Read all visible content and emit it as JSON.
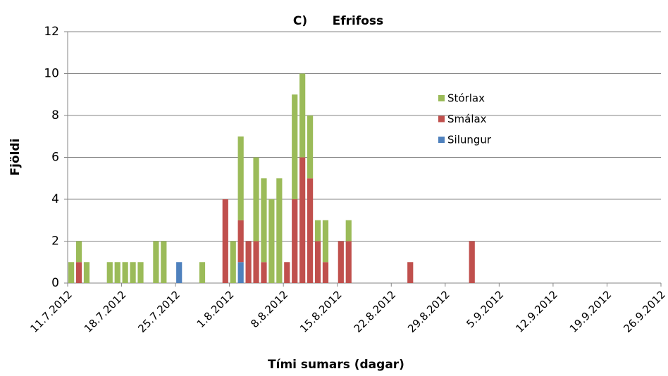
{
  "chart_data": {
    "type": "stacked_bar",
    "title": "C)      Efrifoss",
    "xlabel": "Tími sumars (dagar)",
    "ylabel": "Fjöldi",
    "categories": [
      "11.7.2012",
      null,
      null,
      null,
      null,
      null,
      null,
      "18.7.2012",
      null,
      null,
      null,
      null,
      null,
      null,
      "25.7.2012",
      null,
      null,
      null,
      null,
      null,
      null,
      "1.8.2012",
      null,
      null,
      null,
      null,
      null,
      null,
      "8.8.2012",
      null,
      null,
      null,
      null,
      null,
      null,
      "15.8.2012",
      null,
      null,
      null,
      null,
      null,
      null,
      "22.8.2012",
      null,
      null,
      null,
      null,
      null,
      null,
      "29.8.2012",
      null,
      null,
      null,
      null,
      null,
      null,
      "5.9.2012",
      null,
      null,
      null,
      null,
      null,
      null,
      "12.9.2012",
      null,
      null,
      null,
      null,
      null,
      null,
      "19.9.2012",
      null,
      null,
      null,
      null,
      null,
      null,
      "26.9.2012"
    ],
    "series": [
      {
        "name": "Stórlax",
        "color": "#9bbb59",
        "values": [
          1,
          1,
          1,
          0,
          0,
          1,
          1,
          1,
          1,
          1,
          0,
          2,
          2,
          0,
          0,
          0,
          0,
          1,
          0,
          0,
          0,
          2,
          4,
          0,
          4,
          4,
          4,
          5,
          0,
          5,
          4,
          3,
          1,
          2,
          0,
          0,
          1,
          0,
          0,
          0,
          0,
          0,
          0,
          0,
          0,
          0,
          0,
          0,
          0,
          0,
          0,
          0,
          0,
          0,
          0,
          0,
          0,
          0,
          0,
          0,
          0,
          0,
          0,
          0,
          0,
          0,
          0,
          0,
          0,
          0,
          0,
          0,
          0,
          0,
          0,
          0,
          0,
          0
        ]
      },
      {
        "name": "Smálax",
        "color": "#c0504d",
        "values": [
          0,
          1,
          0,
          0,
          0,
          0,
          0,
          0,
          0,
          0,
          0,
          0,
          0,
          0,
          0,
          0,
          0,
          0,
          0,
          0,
          4,
          0,
          2,
          2,
          2,
          1,
          0,
          0,
          1,
          4,
          6,
          5,
          2,
          1,
          0,
          2,
          2,
          0,
          0,
          0,
          0,
          0,
          0,
          0,
          1,
          0,
          0,
          0,
          0,
          0,
          0,
          0,
          2,
          0,
          0,
          0,
          0,
          0,
          0,
          0,
          0,
          0,
          0,
          0,
          0,
          0,
          0,
          0,
          0,
          0,
          0,
          0,
          0,
          0,
          0,
          0,
          0,
          0
        ]
      },
      {
        "name": "Silungur",
        "color": "#4f81bd",
        "values": [
          0,
          0,
          0,
          0,
          0,
          0,
          0,
          0,
          0,
          0,
          0,
          0,
          0,
          0,
          1,
          0,
          0,
          0,
          0,
          0,
          0,
          0,
          1,
          0,
          0,
          0,
          0,
          0,
          0,
          0,
          0,
          0,
          0,
          0,
          0,
          0,
          0,
          0,
          0,
          0,
          0,
          0,
          0,
          0,
          0,
          0,
          0,
          0,
          0,
          0,
          0,
          0,
          0,
          0,
          0,
          0,
          0,
          0,
          0,
          0,
          0,
          0,
          0,
          0,
          0,
          0,
          0,
          0,
          0,
          0,
          0,
          0,
          0,
          0,
          0,
          0,
          0,
          0
        ]
      }
    ],
    "ylim": [
      0,
      12
    ],
    "yticks": [
      0,
      2,
      4,
      6,
      8,
      10,
      12
    ],
    "grid": true
  }
}
